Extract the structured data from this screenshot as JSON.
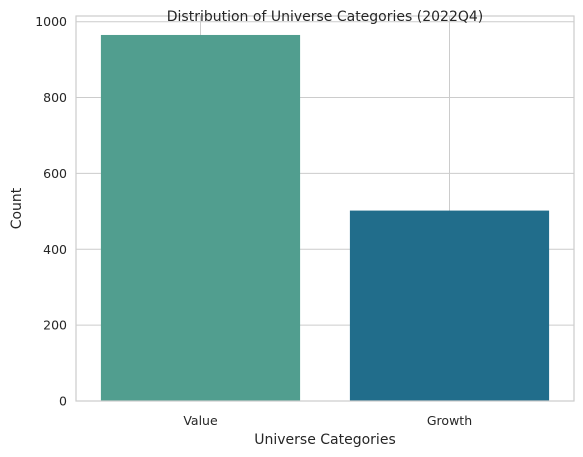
{
  "chart_data": {
    "type": "bar",
    "title": "Distribution of Universe Categories (2022Q4)",
    "xlabel": "Universe Categories",
    "ylabel": "Count",
    "categories": [
      "Value",
      "Growth"
    ],
    "values": [
      965,
      502
    ],
    "colors": [
      "#519e8f",
      "#216d8b"
    ],
    "ylim": [
      0,
      1015
    ],
    "yticks": [
      0,
      200,
      400,
      600,
      800,
      1000
    ],
    "grid": true
  }
}
